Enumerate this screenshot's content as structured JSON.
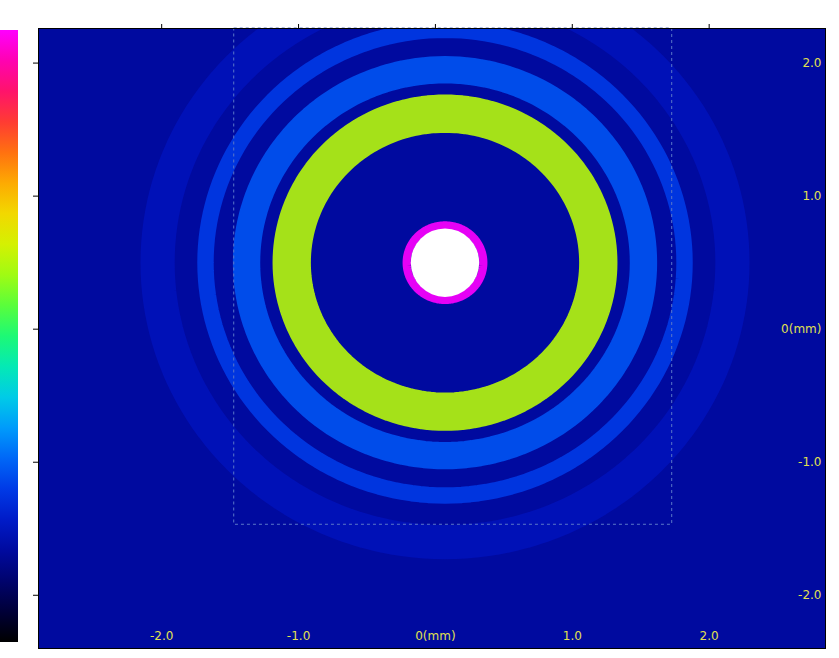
{
  "chart_data": {
    "type": "heatmap",
    "xlim": [
      -2.9,
      2.85
    ],
    "ylim": [
      -2.4,
      2.26
    ],
    "xticks": [
      {
        "value": -2,
        "label": "-2.0"
      },
      {
        "value": -1,
        "label": "-1.0"
      },
      {
        "value": 0,
        "label": "0(mm)"
      },
      {
        "value": 1,
        "label": "1.0"
      },
      {
        "value": 2,
        "label": "2.0"
      }
    ],
    "yticks": [
      {
        "value": 2,
        "label": "2.0"
      },
      {
        "value": 1,
        "label": "1.0"
      },
      {
        "value": 0,
        "label": "0(mm)"
      },
      {
        "value": -1,
        "label": "-1.0"
      },
      {
        "value": -2,
        "label": "-2.0"
      }
    ],
    "color_range": [
      0,
      1
    ],
    "background": 0.15,
    "center": [
      0.07,
      0.5
    ],
    "rings": [
      {
        "radius": 2.1,
        "width": 0.25,
        "intensity": 0.18
      },
      {
        "radius": 1.75,
        "width": 0.12,
        "intensity": 0.25
      },
      {
        "radius": 1.45,
        "width": 0.2,
        "intensity": 0.28
      },
      {
        "radius": 1.12,
        "width": 0.28,
        "intensity": 0.62
      },
      {
        "radius": 0.28,
        "width": 0.06,
        "intensity": 1.0
      }
    ],
    "spot": {
      "radius": 0.25
    },
    "roi": {
      "x": [
        -1.47,
        1.73
      ],
      "y": [
        -1.47,
        2.26
      ]
    }
  }
}
